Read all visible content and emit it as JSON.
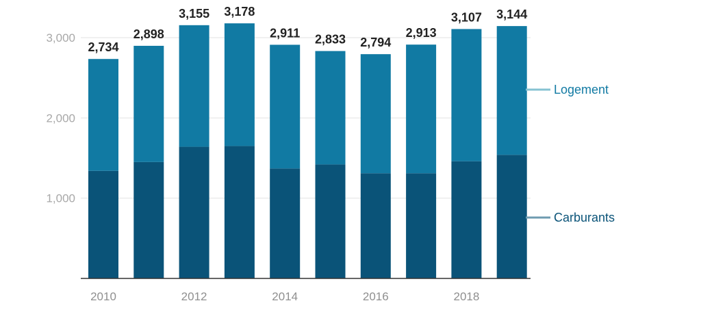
{
  "chart_data": {
    "type": "bar",
    "stacked": true,
    "title": "",
    "xlabel": "",
    "ylabel": "",
    "categories": [
      "2010",
      "2011",
      "2012",
      "2013",
      "2014",
      "2015",
      "2016",
      "2017",
      "2018",
      "2019"
    ],
    "x_tick_labels": [
      "2010",
      "",
      "2012",
      "",
      "2014",
      "",
      "2016",
      "",
      "2018",
      ""
    ],
    "y_ticks": [
      1000,
      2000,
      3000
    ],
    "y_tick_labels": [
      "1,000",
      "2,000",
      "3,000"
    ],
    "ylim": [
      0,
      3200
    ],
    "grid": true,
    "series": [
      {
        "name": "Carburants",
        "color": "#0a5378",
        "values": [
          1340,
          1450,
          1640,
          1650,
          1370,
          1420,
          1310,
          1310,
          1460,
          1540
        ]
      },
      {
        "name": "Logement",
        "color": "#117aa3",
        "values": [
          1394,
          1448,
          1515,
          1528,
          1541,
          1413,
          1484,
          1603,
          1647,
          1604
        ]
      }
    ],
    "totals": [
      2734,
      2898,
      3155,
      3178,
      2911,
      2833,
      2794,
      2913,
      3107,
      3144
    ],
    "total_labels": [
      "2,734",
      "2,898",
      "3,155",
      "3,178",
      "2,911",
      "2,833",
      "2,794",
      "2,913",
      "3,107",
      "3,144"
    ],
    "legend_position": "right"
  },
  "legend": {
    "logement": {
      "label": "Logement",
      "text_color": "#117aa3",
      "line_color": "#86c2d2"
    },
    "carburants": {
      "label": "Carburants",
      "text_color": "#0a5378",
      "line_color": "#6e9bb0"
    }
  }
}
